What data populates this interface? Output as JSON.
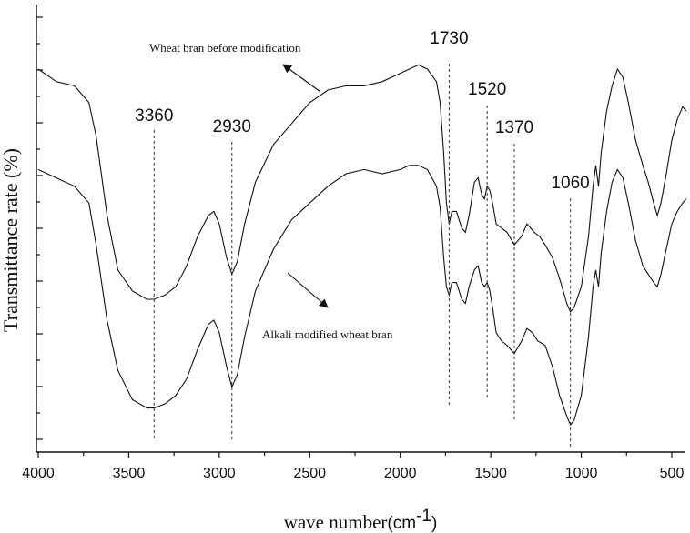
{
  "chart_data": {
    "type": "line",
    "title": "",
    "xlabel": "wave number",
    "xlabel_unit_pre": "(cm",
    "xlabel_unit_sup": "-1",
    "xlabel_unit_post": ")",
    "ylabel": "Transmittance rate (%)",
    "xlim": [
      4000,
      400
    ],
    "x_reversed": true,
    "y_tick_labels_shown": false,
    "x_ticks": [
      4000,
      3500,
      3000,
      2500,
      2000,
      1500,
      1000,
      500
    ],
    "x_tick_labels": [
      "4000",
      "3500",
      "3000",
      "2500",
      "2000",
      "1500",
      "1000",
      "500"
    ],
    "series": [
      {
        "label": "Wheat bran before modification",
        "points": [
          [
            4000,
            0.9
          ],
          [
            3900,
            0.87
          ],
          [
            3800,
            0.86
          ],
          [
            3720,
            0.82
          ],
          [
            3680,
            0.74
          ],
          [
            3620,
            0.55
          ],
          [
            3560,
            0.42
          ],
          [
            3480,
            0.37
          ],
          [
            3400,
            0.35
          ],
          [
            3360,
            0.35
          ],
          [
            3300,
            0.36
          ],
          [
            3240,
            0.38
          ],
          [
            3180,
            0.43
          ],
          [
            3120,
            0.5
          ],
          [
            3060,
            0.55
          ],
          [
            3030,
            0.56
          ],
          [
            3000,
            0.53
          ],
          [
            2960,
            0.45
          ],
          [
            2930,
            0.41
          ],
          [
            2900,
            0.44
          ],
          [
            2860,
            0.53
          ],
          [
            2800,
            0.63
          ],
          [
            2700,
            0.72
          ],
          [
            2600,
            0.77
          ],
          [
            2500,
            0.82
          ],
          [
            2400,
            0.85
          ],
          [
            2300,
            0.86
          ],
          [
            2200,
            0.86
          ],
          [
            2100,
            0.87
          ],
          [
            2000,
            0.89
          ],
          [
            1950,
            0.9
          ],
          [
            1900,
            0.91
          ],
          [
            1850,
            0.9
          ],
          [
            1800,
            0.87
          ],
          [
            1780,
            0.82
          ],
          [
            1760,
            0.7
          ],
          [
            1745,
            0.58
          ],
          [
            1730,
            0.53
          ],
          [
            1715,
            0.56
          ],
          [
            1690,
            0.56
          ],
          [
            1660,
            0.52
          ],
          [
            1640,
            0.51
          ],
          [
            1620,
            0.55
          ],
          [
            1590,
            0.63
          ],
          [
            1570,
            0.64
          ],
          [
            1550,
            0.6
          ],
          [
            1535,
            0.59
          ],
          [
            1520,
            0.62
          ],
          [
            1505,
            0.61
          ],
          [
            1490,
            0.58
          ],
          [
            1470,
            0.53
          ],
          [
            1440,
            0.52
          ],
          [
            1410,
            0.51
          ],
          [
            1370,
            0.48
          ],
          [
            1330,
            0.5
          ],
          [
            1300,
            0.53
          ],
          [
            1260,
            0.51
          ],
          [
            1230,
            0.5
          ],
          [
            1200,
            0.48
          ],
          [
            1160,
            0.45
          ],
          [
            1120,
            0.4
          ],
          [
            1080,
            0.34
          ],
          [
            1060,
            0.32
          ],
          [
            1040,
            0.33
          ],
          [
            1000,
            0.38
          ],
          [
            960,
            0.5
          ],
          [
            935,
            0.62
          ],
          [
            920,
            0.67
          ],
          [
            905,
            0.62
          ],
          [
            890,
            0.7
          ],
          [
            860,
            0.8
          ],
          [
            830,
            0.86
          ],
          [
            800,
            0.9
          ],
          [
            770,
            0.88
          ],
          [
            740,
            0.82
          ],
          [
            700,
            0.73
          ],
          [
            660,
            0.67
          ],
          [
            630,
            0.63
          ],
          [
            600,
            0.58
          ],
          [
            580,
            0.55
          ],
          [
            560,
            0.58
          ],
          [
            530,
            0.65
          ],
          [
            500,
            0.73
          ],
          [
            470,
            0.78
          ],
          [
            440,
            0.81
          ],
          [
            420,
            0.8
          ]
        ]
      },
      {
        "label": "Alkali modified wheat bran",
        "points": [
          [
            4000,
            0.66
          ],
          [
            3900,
            0.64
          ],
          [
            3800,
            0.62
          ],
          [
            3720,
            0.58
          ],
          [
            3680,
            0.48
          ],
          [
            3620,
            0.3
          ],
          [
            3560,
            0.18
          ],
          [
            3480,
            0.11
          ],
          [
            3400,
            0.09
          ],
          [
            3360,
            0.09
          ],
          [
            3300,
            0.1
          ],
          [
            3240,
            0.12
          ],
          [
            3180,
            0.16
          ],
          [
            3120,
            0.23
          ],
          [
            3060,
            0.29
          ],
          [
            3030,
            0.3
          ],
          [
            3000,
            0.27
          ],
          [
            2960,
            0.19
          ],
          [
            2930,
            0.14
          ],
          [
            2900,
            0.17
          ],
          [
            2860,
            0.26
          ],
          [
            2800,
            0.37
          ],
          [
            2700,
            0.47
          ],
          [
            2600,
            0.54
          ],
          [
            2500,
            0.58
          ],
          [
            2400,
            0.62
          ],
          [
            2300,
            0.65
          ],
          [
            2200,
            0.66
          ],
          [
            2100,
            0.65
          ],
          [
            2000,
            0.66
          ],
          [
            1950,
            0.67
          ],
          [
            1900,
            0.67
          ],
          [
            1850,
            0.66
          ],
          [
            1800,
            0.62
          ],
          [
            1780,
            0.57
          ],
          [
            1760,
            0.45
          ],
          [
            1745,
            0.38
          ],
          [
            1730,
            0.36
          ],
          [
            1715,
            0.39
          ],
          [
            1690,
            0.39
          ],
          [
            1660,
            0.35
          ],
          [
            1640,
            0.34
          ],
          [
            1620,
            0.38
          ],
          [
            1590,
            0.42
          ],
          [
            1570,
            0.43
          ],
          [
            1550,
            0.39
          ],
          [
            1535,
            0.38
          ],
          [
            1520,
            0.39
          ],
          [
            1505,
            0.37
          ],
          [
            1490,
            0.33
          ],
          [
            1470,
            0.27
          ],
          [
            1440,
            0.25
          ],
          [
            1410,
            0.24
          ],
          [
            1370,
            0.22
          ],
          [
            1330,
            0.25
          ],
          [
            1300,
            0.28
          ],
          [
            1270,
            0.27
          ],
          [
            1240,
            0.25
          ],
          [
            1200,
            0.24
          ],
          [
            1160,
            0.19
          ],
          [
            1120,
            0.12
          ],
          [
            1080,
            0.07
          ],
          [
            1060,
            0.05
          ],
          [
            1040,
            0.06
          ],
          [
            1000,
            0.12
          ],
          [
            960,
            0.26
          ],
          [
            935,
            0.38
          ],
          [
            920,
            0.42
          ],
          [
            905,
            0.38
          ],
          [
            890,
            0.46
          ],
          [
            860,
            0.56
          ],
          [
            830,
            0.63
          ],
          [
            800,
            0.66
          ],
          [
            770,
            0.64
          ],
          [
            740,
            0.58
          ],
          [
            700,
            0.49
          ],
          [
            660,
            0.43
          ],
          [
            630,
            0.41
          ],
          [
            600,
            0.39
          ],
          [
            580,
            0.38
          ],
          [
            560,
            0.41
          ],
          [
            530,
            0.47
          ],
          [
            500,
            0.53
          ],
          [
            470,
            0.56
          ],
          [
            440,
            0.58
          ],
          [
            420,
            0.59
          ]
        ]
      }
    ],
    "peak_markers": [
      {
        "x": 3360,
        "label": "3360"
      },
      {
        "x": 2930,
        "label": "2930"
      },
      {
        "x": 1730,
        "label": "1730"
      },
      {
        "x": 1520,
        "label": "1520"
      },
      {
        "x": 1370,
        "label": "1370"
      },
      {
        "x": 1060,
        "label": "1060"
      }
    ],
    "grid": false,
    "legend": "none"
  }
}
